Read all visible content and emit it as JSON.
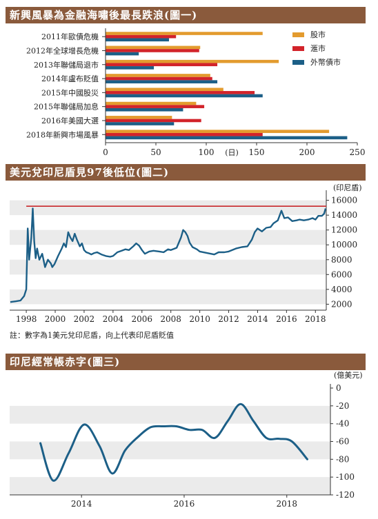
{
  "colors": {
    "banner": "#8a5a3c",
    "stock": "#e39b2e",
    "currency": "#d2232a",
    "fx": "#1c5f87",
    "line": "#1c5f87",
    "ref": "#c8262a",
    "band": "#ebebeb"
  },
  "chart1": {
    "title": "新興風暴為金融海嘯後最長跌浪(圖一)",
    "axis_unit": "(日)",
    "legend": [
      "股市",
      "滙市",
      "外幣債市"
    ],
    "chart_data": {
      "type": "bar",
      "orientation": "horizontal",
      "categories": [
        "2011年歐債危機",
        "2012年全球增長危機",
        "2013年聯儲局退市",
        "2014年盧布貶值",
        "2015年中國股災",
        "2015年聯儲局加息",
        "2016年美國大選",
        "2018年新興市場風暴"
      ],
      "series": [
        {
          "name": "股市",
          "values": [
            156,
            94,
            172,
            104,
            117,
            90,
            66,
            222
          ]
        },
        {
          "name": "滙市",
          "values": [
            70,
            93,
            111,
            106,
            148,
            98,
            95,
            156
          ]
        },
        {
          "name": "外幣債市",
          "values": [
            63,
            33,
            48,
            111,
            156,
            77,
            68,
            240
          ]
        }
      ],
      "xlim": [
        0,
        250
      ],
      "xticks": [
        "0",
        "50",
        "100",
        "150",
        "200",
        "250"
      ]
    }
  },
  "chart2": {
    "title": "美元兌印尼盾見97後低位(圖二)",
    "unit_label": "(印尼盾)",
    "note": "註：數字為1美元兌印尼盾，向上代表印尼盾貶值",
    "chart_data": {
      "type": "line",
      "xlabels": [
        "1998",
        "2000",
        "2002",
        "2004",
        "2006",
        "2008",
        "2010",
        "2012",
        "2014",
        "2016",
        "2018"
      ],
      "yticks": [
        "2000",
        "4000",
        "6000",
        "8000",
        "10000",
        "12000",
        "14000",
        "16000"
      ],
      "ylim": [
        1200,
        16800
      ],
      "xlim": [
        1996.85,
        2018.75
      ],
      "reference_line": 15200,
      "x": [
        1996.9,
        1997.3,
        1997.6,
        1997.85,
        1998.0,
        1998.1,
        1998.2,
        1998.35,
        1998.45,
        1998.55,
        1998.65,
        1998.75,
        1998.9,
        1999.1,
        1999.3,
        1999.5,
        1999.7,
        1999.8,
        1999.95,
        2000.2,
        2000.45,
        2000.6,
        2000.75,
        2000.9,
        2001.05,
        2001.2,
        2001.35,
        2001.5,
        2001.7,
        2001.85,
        2002.0,
        2002.15,
        2002.3,
        2002.5,
        2002.7,
        2002.9,
        2003.2,
        2003.5,
        2003.8,
        2004.0,
        2004.3,
        2004.6,
        2004.85,
        2005.1,
        2005.4,
        2005.6,
        2005.8,
        2006.0,
        2006.2,
        2006.5,
        2006.8,
        2007.2,
        2007.5,
        2007.8,
        2008.0,
        2008.4,
        2008.7,
        2008.85,
        2009.0,
        2009.15,
        2009.3,
        2009.5,
        2009.8,
        2010.0,
        2010.5,
        2011.0,
        2011.3,
        2011.7,
        2012.0,
        2012.5,
        2012.9,
        2013.3,
        2013.6,
        2013.8,
        2014.0,
        2014.3,
        2014.6,
        2014.9,
        2015.1,
        2015.4,
        2015.65,
        2015.85,
        2016.1,
        2016.4,
        2016.7,
        2016.9,
        2017.2,
        2017.5,
        2017.8,
        2018.0,
        2018.2,
        2018.45,
        2018.6,
        2018.7
      ],
      "y": [
        2300,
        2400,
        2500,
        3100,
        4000,
        12200,
        8000,
        11000,
        14900,
        10500,
        8200,
        9500,
        8000,
        8800,
        7000,
        8000,
        7500,
        7000,
        7400,
        8500,
        9500,
        10200,
        9700,
        11700,
        11000,
        10500,
        11500,
        10700,
        9800,
        10200,
        9300,
        9000,
        8900,
        8700,
        8900,
        9000,
        8700,
        8500,
        8400,
        8500,
        9000,
        9200,
        9400,
        9300,
        9800,
        10200,
        9900,
        9300,
        8800,
        9100,
        9200,
        9100,
        9000,
        9400,
        9300,
        9600,
        11000,
        12000,
        11700,
        11200,
        10300,
        9700,
        9400,
        9100,
        8900,
        8700,
        9000,
        9000,
        9100,
        9500,
        9700,
        9800,
        10700,
        11700,
        12200,
        11800,
        12300,
        12400,
        12900,
        13300,
        14600,
        13600,
        13700,
        13200,
        13300,
        13400,
        13300,
        13400,
        13600,
        13400,
        13900,
        13900,
        14200,
        14900
      ]
    }
  },
  "chart3": {
    "title": "印尼經常帳赤字(圖三)",
    "unit_label": "(億美元)",
    "chart_data": {
      "type": "line",
      "xlabels": [
        "2014",
        "2016",
        "2018"
      ],
      "yticks": [
        "0",
        "-20",
        "-40",
        "-60",
        "-80",
        "-100",
        "-120"
      ],
      "ylim": [
        -120,
        0
      ],
      "xlim": [
        2012.6,
        2018.85
      ],
      "x": [
        2013.2,
        2013.45,
        2013.75,
        2014.05,
        2014.35,
        2014.6,
        2014.85,
        2015.1,
        2015.35,
        2015.6,
        2015.85,
        2016.1,
        2016.35,
        2016.6,
        2016.85,
        2017.1,
        2017.35,
        2017.6,
        2017.85,
        2018.1,
        2018.4
      ],
      "y": [
        -62,
        -104,
        -73,
        -41,
        -65,
        -96,
        -70,
        -55,
        -44,
        -43,
        -43,
        -47,
        -47,
        -56,
        -37,
        -18,
        -37,
        -56,
        -57,
        -60,
        -80
      ]
    }
  }
}
